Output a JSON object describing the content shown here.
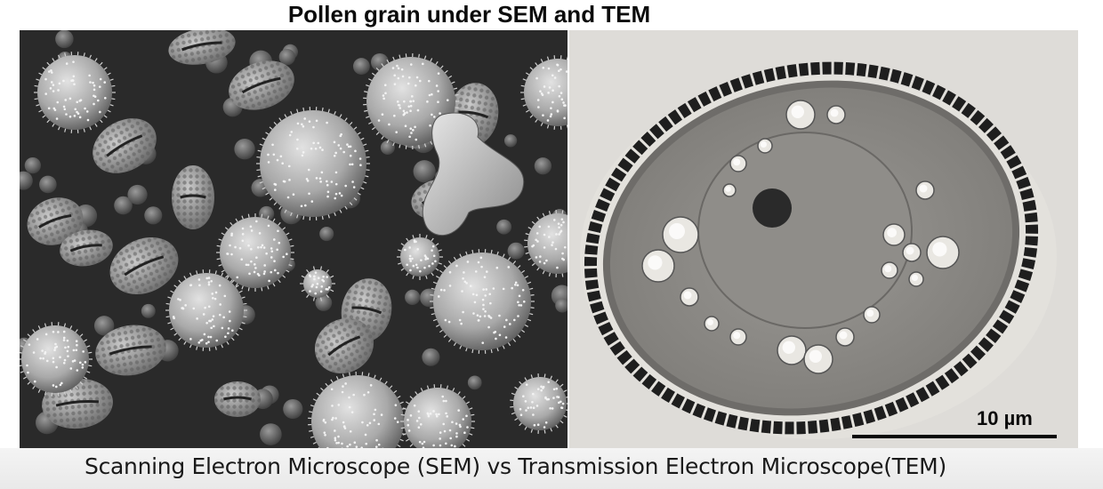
{
  "title": "Pollen grain under SEM and TEM",
  "caption": "Scanning Electron Microscope (SEM) vs Transmission Electron Microscope(TEM)",
  "scale_bar_label": "10 µm",
  "colors": {
    "sem_background": "#2b2b2b",
    "tem_background": "#dcdad6"
  }
}
